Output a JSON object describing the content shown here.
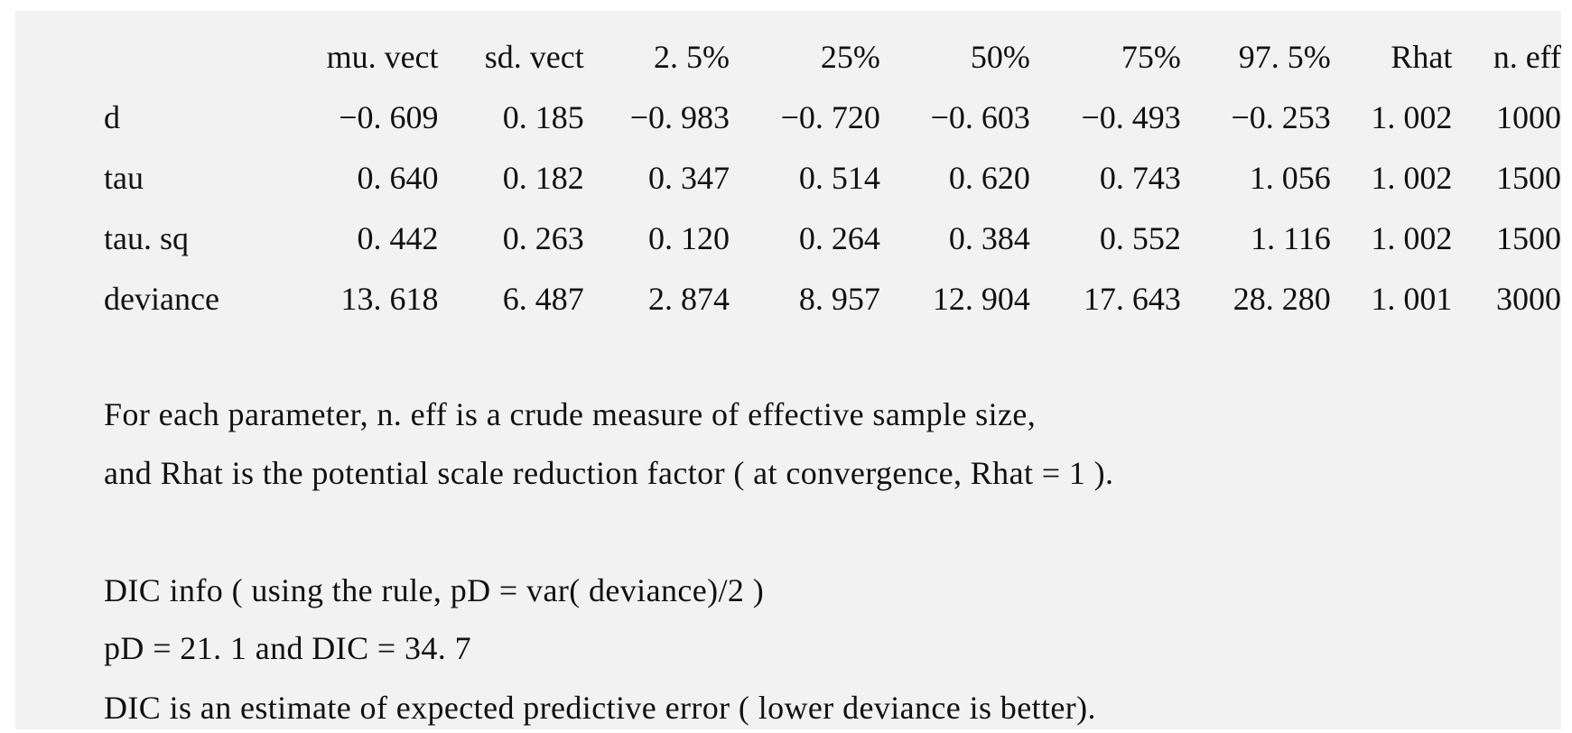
{
  "table": {
    "columns": [
      "mu. vect",
      "sd. vect",
      "2. 5%",
      "25%",
      "50%",
      "75%",
      "97. 5%",
      "Rhat",
      "n. eff"
    ],
    "rows": [
      {
        "label": "d",
        "values": [
          "−0. 609",
          "0. 185",
          "−0. 983",
          "−0. 720",
          "−0. 603",
          "−0. 493",
          "−0. 253",
          "1. 002",
          "1000"
        ]
      },
      {
        "label": "tau",
        "values": [
          "0. 640",
          "0. 182",
          "0. 347",
          "0. 514",
          "0. 620",
          "0. 743",
          "1. 056",
          "1. 002",
          "1500"
        ]
      },
      {
        "label": "tau. sq",
        "values": [
          "0. 442",
          "0. 263",
          "0. 120",
          "0. 264",
          "0. 384",
          "0. 552",
          "1. 116",
          "1. 002",
          "1500"
        ]
      },
      {
        "label": "deviance",
        "values": [
          "13. 618",
          "6. 487",
          "2. 874",
          "8. 957",
          "12. 904",
          "17. 643",
          "28. 280",
          "1. 001",
          "3000"
        ]
      }
    ]
  },
  "notes": {
    "neff_line": "For each parameter, n. eff is a crude measure of effective sample size,",
    "rhat_line": "and Rhat is the potential scale reduction factor ( at convergence, Rhat = 1 ).",
    "dic_rule": "DIC info ( using the rule, pD = var( deviance)/2 )",
    "dic_values": "pD = 21. 1 and DIC = 34. 7",
    "dic_explanation": "DIC is an estimate of expected predictive error ( lower deviance is better)."
  }
}
